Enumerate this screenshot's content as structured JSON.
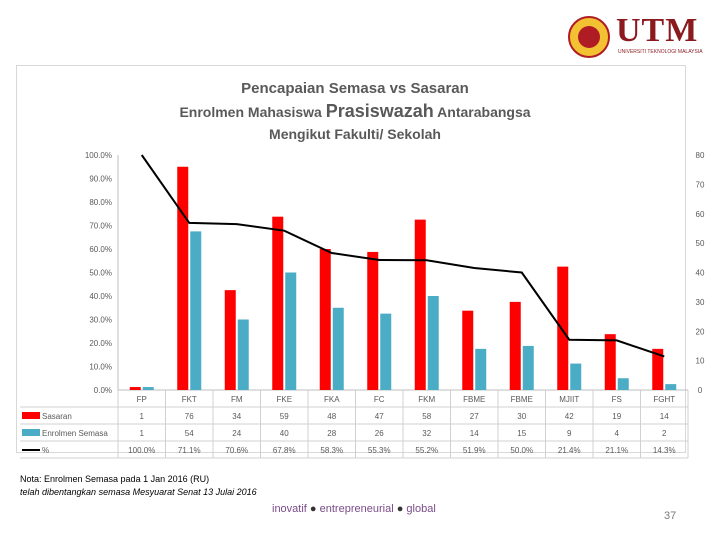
{
  "logo": {
    "name": "UTM",
    "subtitle": "UNIVERSITI TEKNOLOGI MALAYSIA"
  },
  "title": {
    "line1": "Pencapaian Semasa vs Sasaran",
    "line2_pre": "Enrolmen Mahasiswa ",
    "line2_big": "Prasiswazah",
    "line2_post": " Antarabangsa",
    "line3": "Mengikut Fakulti/ Sekolah"
  },
  "chart_data": {
    "type": "bar",
    "categories": [
      "FP",
      "FKT",
      "FM",
      "FKE",
      "FKA",
      "FC",
      "FKM",
      "FBME",
      "FBME",
      "MJIIT",
      "FS",
      "FGHT"
    ],
    "series": [
      {
        "name": "Sasaran",
        "type": "bar",
        "axis": "right",
        "color": "#ff0000",
        "values": [
          1,
          76,
          34,
          59,
          48,
          47,
          58,
          27,
          30,
          42,
          19,
          14
        ]
      },
      {
        "name": "Enrolmen Semasa",
        "type": "bar",
        "axis": "right",
        "color": "#4bacc6",
        "values": [
          1,
          54,
          24,
          40,
          28,
          26,
          32,
          14,
          15,
          9,
          4,
          2
        ]
      },
      {
        "name": "%",
        "type": "line",
        "axis": "left",
        "color": "#000000",
        "values": [
          100.0,
          71.1,
          70.6,
          67.8,
          58.3,
          55.3,
          55.2,
          51.9,
          50.0,
          21.4,
          21.1,
          14.3
        ]
      }
    ],
    "table_rows": [
      [
        "1",
        "76",
        "34",
        "59",
        "48",
        "47",
        "58",
        "27",
        "30",
        "42",
        "19",
        "14"
      ],
      [
        "1",
        "54",
        "24",
        "40",
        "28",
        "26",
        "32",
        "14",
        "15",
        "9",
        "4",
        "2"
      ],
      [
        "100.0%",
        "71.1%",
        "70.6%",
        "67.8%",
        "58.3%",
        "55.3%",
        "55.2%",
        "51.9%",
        "50.0%",
        "21.4%",
        "21.1%",
        "14.3%"
      ]
    ],
    "y_left": {
      "min": 0,
      "max": 100,
      "step": 10,
      "ticks": [
        "0.0%",
        "10.0%",
        "20.0%",
        "30.0%",
        "40.0%",
        "50.0%",
        "60.0%",
        "70.0%",
        "80.0%",
        "90.0%",
        "100.0%"
      ]
    },
    "y_right": {
      "min": 0,
      "max": 80,
      "step": 10,
      "ticks": [
        "0",
        "10",
        "20",
        "30",
        "40",
        "50",
        "60",
        "70",
        "80"
      ]
    },
    "legend_position": "data-table",
    "grid": false
  },
  "notes": {
    "line1": "Nota: Enrolmen Semasa pada 1 Jan 2016 (RU)",
    "line2": "telah dibentangkan semasa Mesyuarat Senat 13 Julai 2016"
  },
  "footer": {
    "w1": "inovatif",
    "w2": "entrepreneurial",
    "w3": "global",
    "sep": "●"
  },
  "page_number": "37"
}
